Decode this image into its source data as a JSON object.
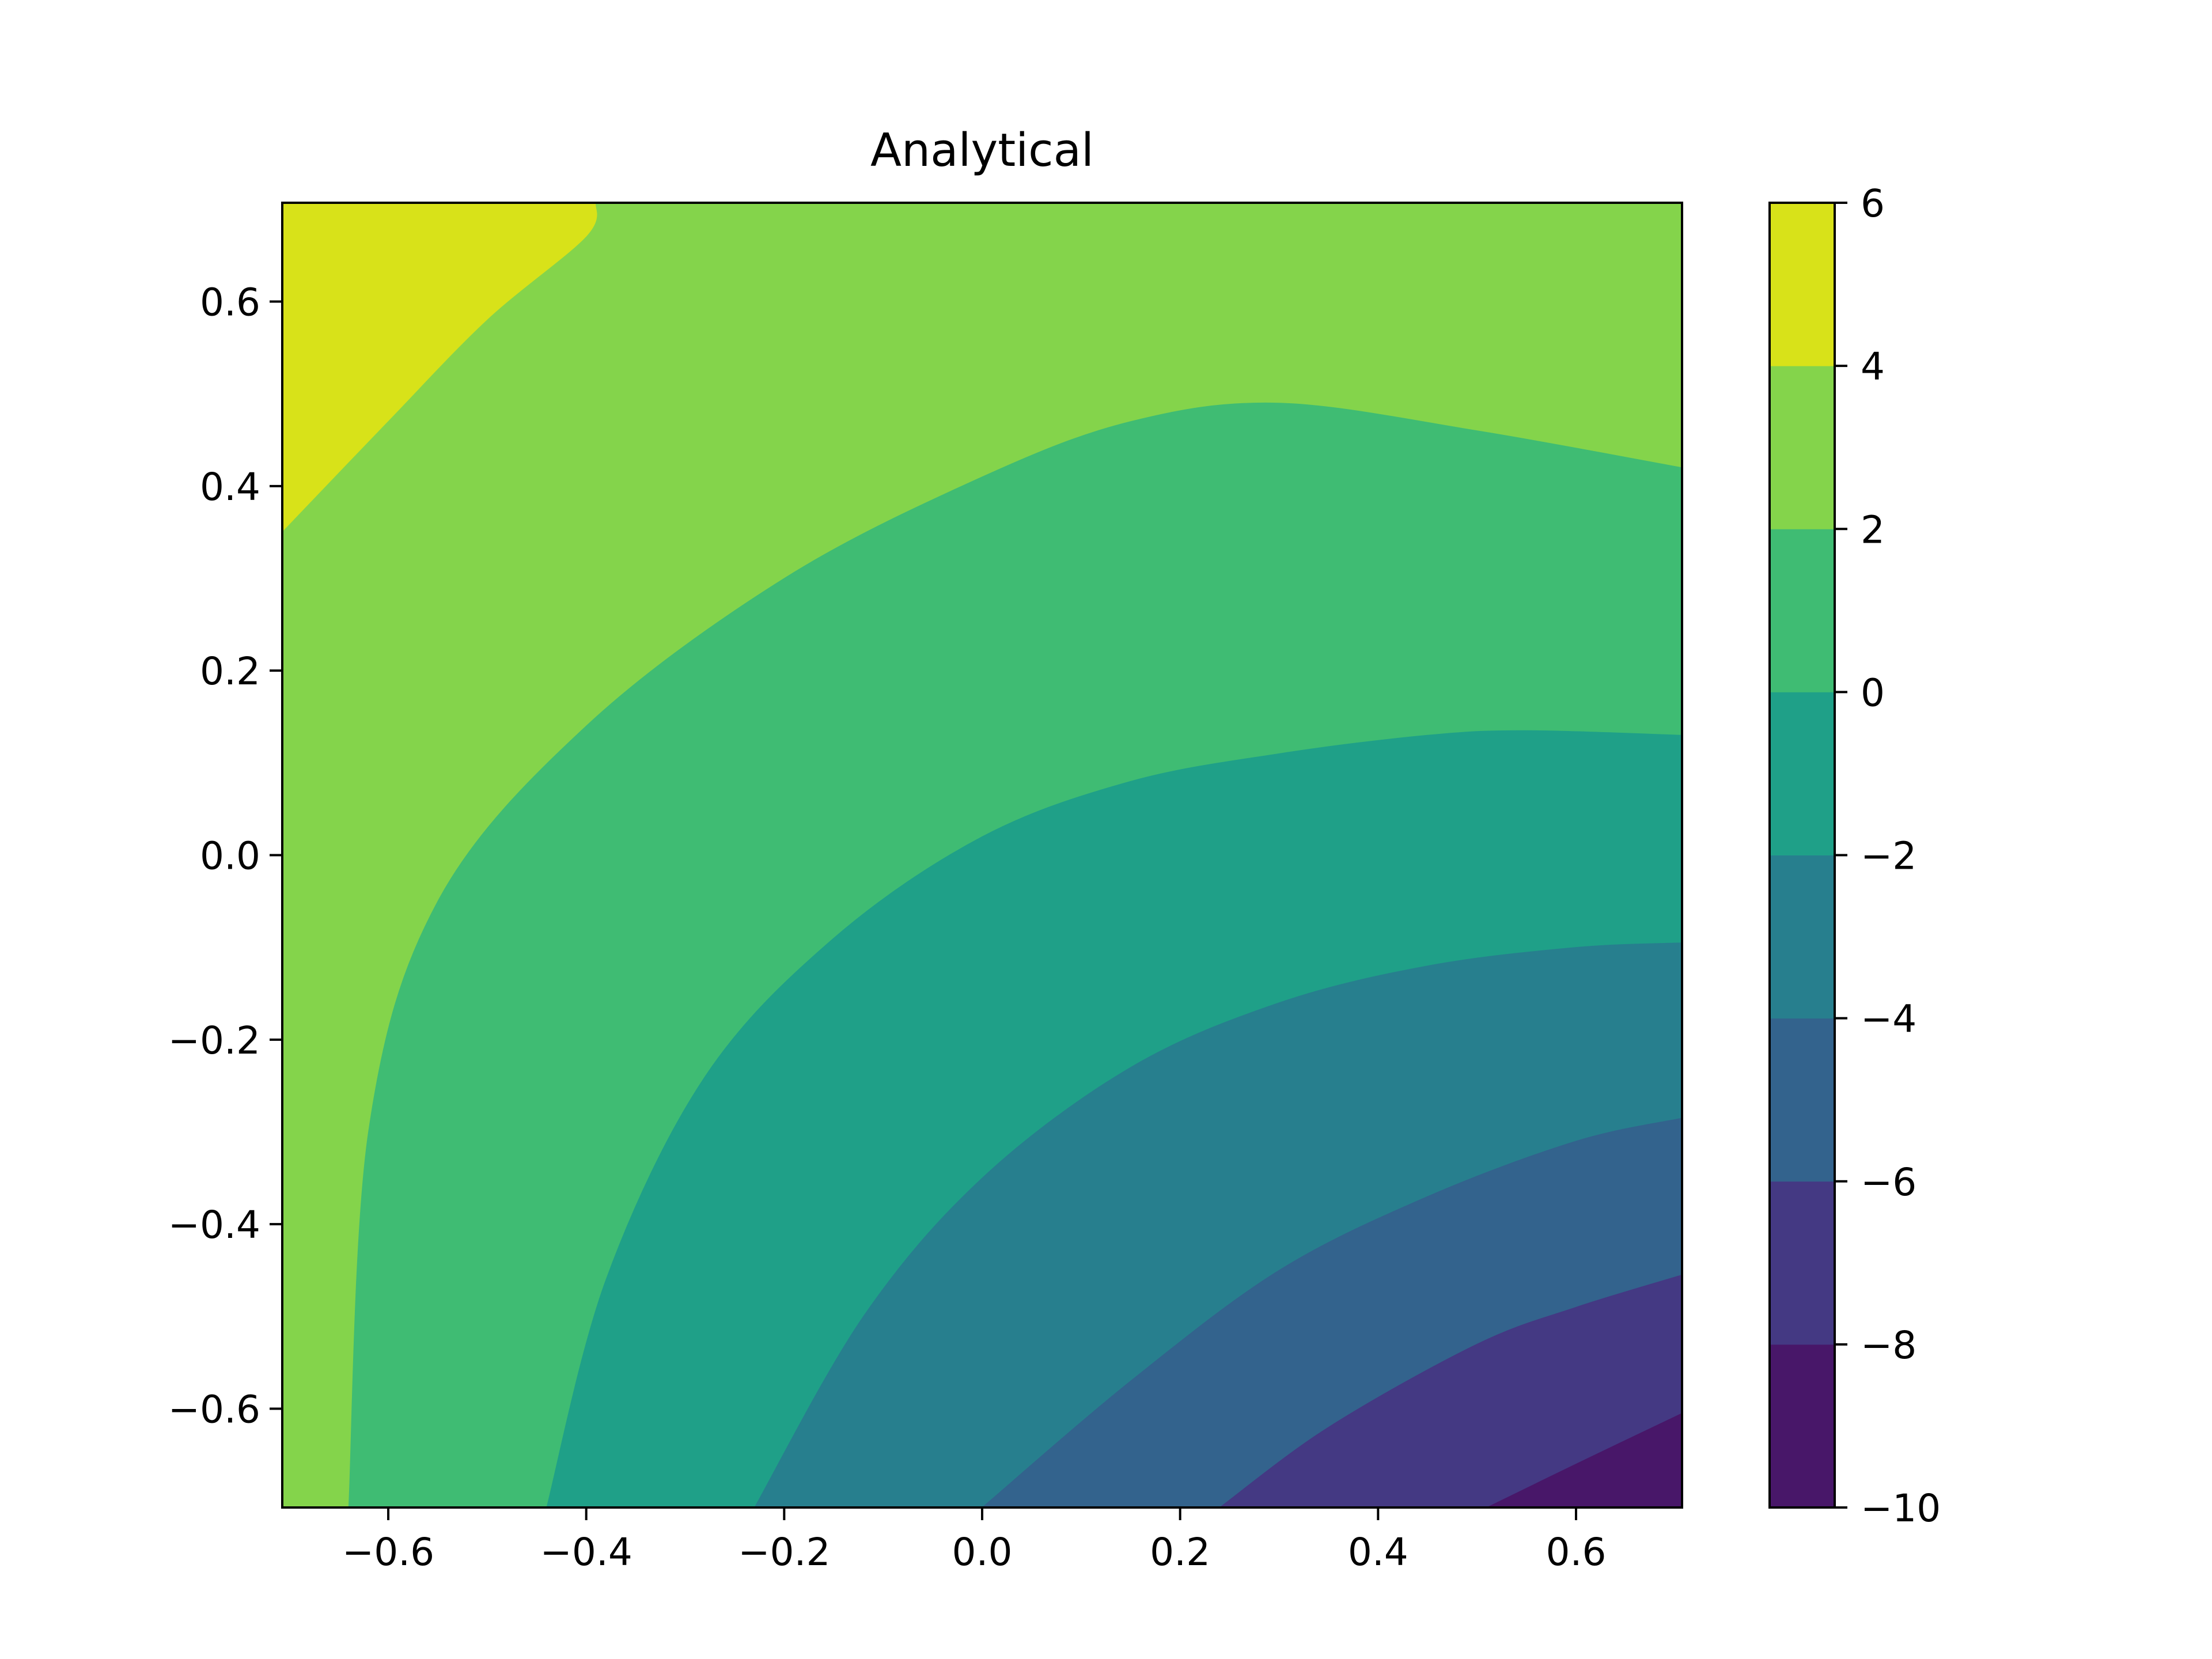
{
  "chart_data": {
    "type": "contour",
    "title": "Analytical",
    "xlabel": "",
    "ylabel": "",
    "xlim": [
      -0.7071,
      0.7071
    ],
    "ylim": [
      -0.7071,
      0.7071
    ],
    "x_ticks": [
      -0.6,
      -0.4,
      -0.2,
      0.0,
      0.2,
      0.4,
      0.6
    ],
    "x_tick_labels": [
      "−0.6",
      "−0.4",
      "−0.2",
      "0.0",
      "0.2",
      "0.4",
      "0.6"
    ],
    "y_ticks": [
      0.6,
      0.4,
      0.2,
      0.0,
      -0.2,
      -0.4,
      -0.6
    ],
    "y_tick_labels": [
      "0.6",
      "0.4",
      "0.2",
      "0.0",
      "−0.2",
      "−0.4",
      "−0.6"
    ],
    "colorbar": {
      "levels": [
        -10,
        -8,
        -6,
        -4,
        -2,
        0,
        2,
        4,
        6
      ],
      "tick_labels": [
        "−10",
        "−8",
        "−6",
        "−4",
        "−2",
        "0",
        "2",
        "4",
        "6"
      ],
      "colors": [
        "#481769",
        "#443983",
        "#33638d",
        "#277f8e",
        "#1fa088",
        "#3fbc73",
        "#84d44b",
        "#d8e219"
      ]
    },
    "contour_boundaries": [
      {
        "level": 4,
        "points": [
          [
            -0.7071,
            0.35
          ],
          [
            -0.6,
            0.47
          ],
          [
            -0.5,
            0.58
          ],
          [
            -0.4,
            0.67
          ],
          [
            -0.39,
            0.7071
          ]
        ]
      },
      {
        "level": 2,
        "points": [
          [
            -0.64,
            -0.7071
          ],
          [
            -0.62,
            -0.3
          ],
          [
            -0.55,
            -0.05
          ],
          [
            -0.4,
            0.14
          ],
          [
            -0.2,
            0.3
          ],
          [
            0.0,
            0.41
          ],
          [
            0.15,
            0.47
          ],
          [
            0.3,
            0.49
          ],
          [
            0.5,
            0.46
          ],
          [
            0.7071,
            0.42
          ]
        ]
      },
      {
        "level": 0,
        "points": [
          [
            -0.44,
            -0.7071
          ],
          [
            -0.38,
            -0.46
          ],
          [
            -0.28,
            -0.24
          ],
          [
            -0.15,
            -0.09
          ],
          [
            0.0,
            0.02
          ],
          [
            0.15,
            0.08
          ],
          [
            0.3,
            0.11
          ],
          [
            0.45,
            0.13
          ],
          [
            0.55,
            0.135
          ],
          [
            0.7071,
            0.13
          ]
        ]
      },
      {
        "level": -2,
        "points": [
          [
            -0.23,
            -0.7071
          ],
          [
            -0.12,
            -0.5
          ],
          [
            0.0,
            -0.35
          ],
          [
            0.15,
            -0.23
          ],
          [
            0.3,
            -0.16
          ],
          [
            0.45,
            -0.12
          ],
          [
            0.6,
            -0.1
          ],
          [
            0.7071,
            -0.095
          ]
        ]
      },
      {
        "level": -4,
        "points": [
          [
            0.0,
            -0.7071
          ],
          [
            0.15,
            -0.57
          ],
          [
            0.3,
            -0.45
          ],
          [
            0.45,
            -0.37
          ],
          [
            0.6,
            -0.31
          ],
          [
            0.7071,
            -0.285
          ]
        ]
      },
      {
        "level": -6,
        "points": [
          [
            0.24,
            -0.7071
          ],
          [
            0.35,
            -0.62
          ],
          [
            0.5,
            -0.53
          ],
          [
            0.6,
            -0.49
          ],
          [
            0.7071,
            -0.455
          ]
        ]
      },
      {
        "level": -8,
        "points": [
          [
            0.51,
            -0.7071
          ],
          [
            0.6,
            -0.66
          ],
          [
            0.7071,
            -0.605
          ]
        ]
      }
    ]
  }
}
